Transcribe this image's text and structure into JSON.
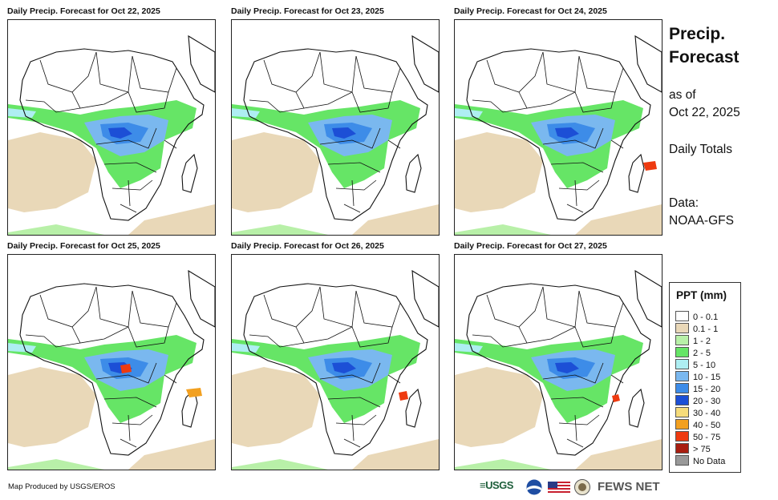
{
  "panels": [
    {
      "title": "Daily Precip. Forecast for Oct 22, 2025"
    },
    {
      "title": "Daily Precip. Forecast for Oct 23, 2025"
    },
    {
      "title": "Daily Precip. Forecast for Oct 24, 2025"
    },
    {
      "title": "Daily Precip. Forecast for Oct 25, 2025"
    },
    {
      "title": "Daily Precip. Forecast for Oct 26, 2025"
    },
    {
      "title": "Daily Precip. Forecast for Oct 27, 2025"
    }
  ],
  "side": {
    "title_line1": "Precip.",
    "title_line2": "Forecast",
    "asof_line1": "as of",
    "asof_line2": "Oct 22, 2025",
    "totals": "Daily Totals",
    "data_line1": "Data:",
    "data_line2": "NOAA-GFS"
  },
  "legend": {
    "title": "PPT (mm)",
    "items": [
      {
        "label": "0 - 0.1",
        "color": "#ffffff"
      },
      {
        "label": "0.1 - 1",
        "color": "#e9d8b8"
      },
      {
        "label": "1 - 2",
        "color": "#b8f0a8"
      },
      {
        "label": "2 - 5",
        "color": "#66e566"
      },
      {
        "label": "5 - 10",
        "color": "#aeeef2"
      },
      {
        "label": "10 - 15",
        "color": "#7ab8ef"
      },
      {
        "label": "15 - 20",
        "color": "#3d8ce8"
      },
      {
        "label": "20 - 30",
        "color": "#1c4fd6"
      },
      {
        "label": "30 - 40",
        "color": "#f6dc7a"
      },
      {
        "label": "40 - 50",
        "color": "#f2a020"
      },
      {
        "label": "50 - 75",
        "color": "#ee3a10"
      },
      {
        "label": "> 75",
        "color": "#a81e10"
      },
      {
        "label": "No Data",
        "color": "#999999"
      }
    ]
  },
  "footer": {
    "credit": "Map Produced by USGS/EROS",
    "usgs": "≡USGS",
    "fews": "FEWS NET",
    "noaa_icon": "noaa-logo-icon",
    "flag_icon": "us-flag-icon",
    "seal_icon": "state-department-seal-icon"
  }
}
